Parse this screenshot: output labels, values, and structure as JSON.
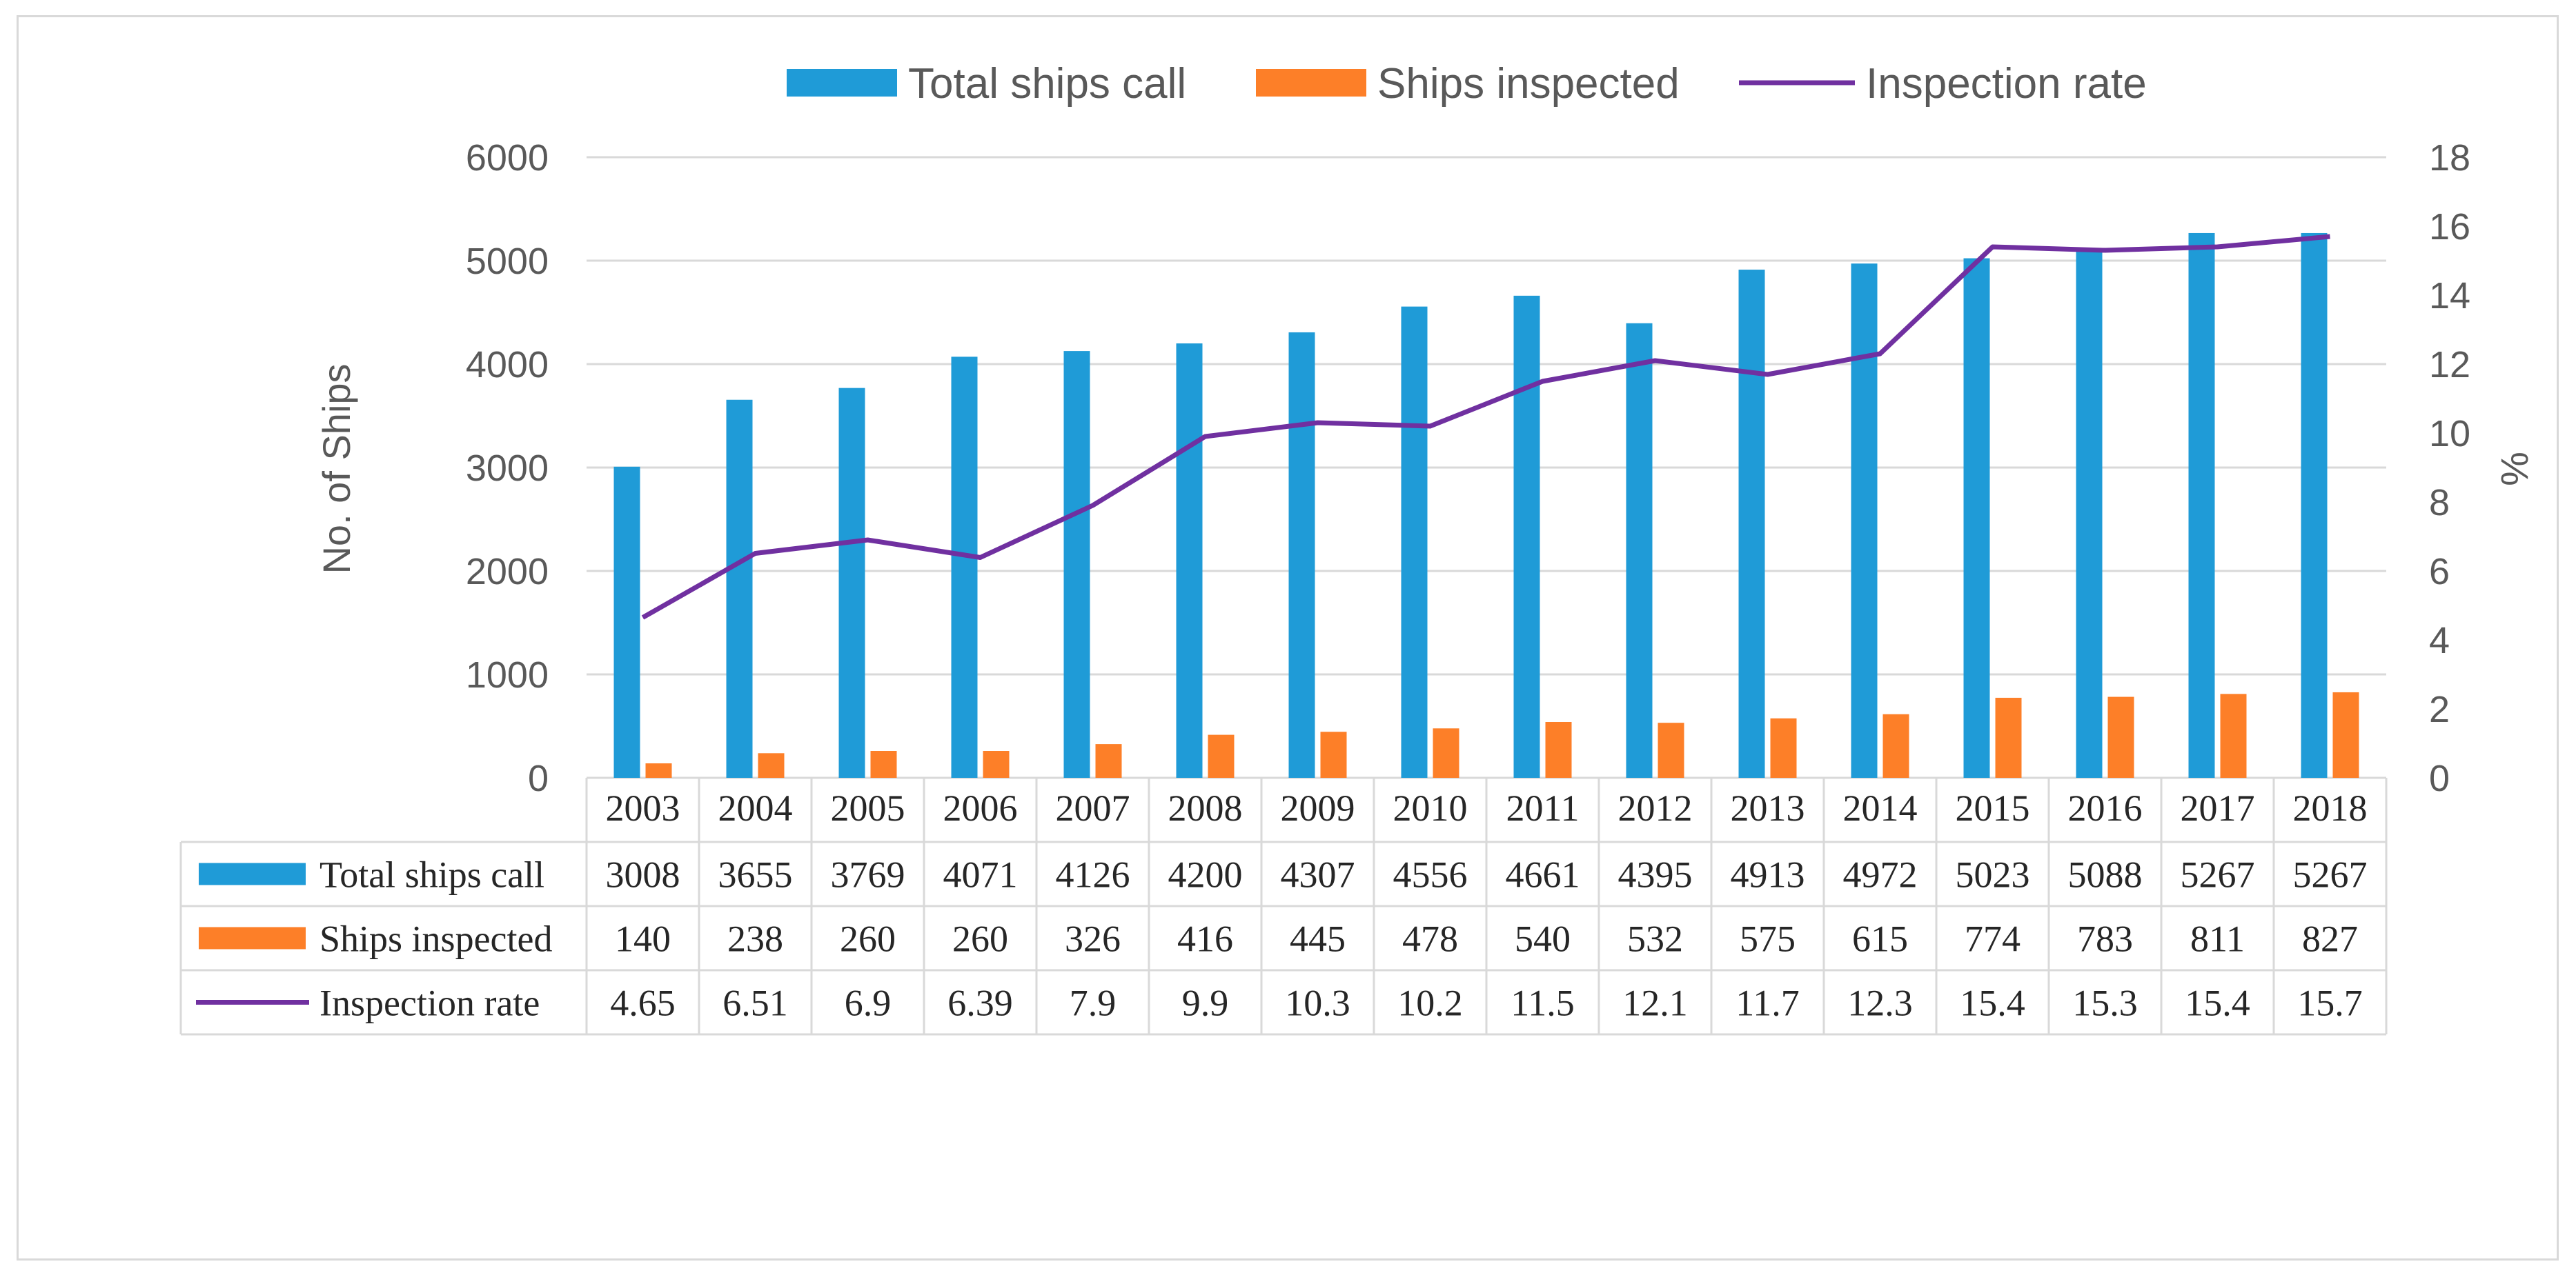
{
  "chart_data": {
    "type": "bar",
    "categories": [
      "2003",
      "2004",
      "2005",
      "2006",
      "2007",
      "2008",
      "2009",
      "2010",
      "2011",
      "2012",
      "2013",
      "2014",
      "2015",
      "2016",
      "2017",
      "2018"
    ],
    "series": [
      {
        "name": "Total ships call",
        "kind": "bar",
        "axis": "left",
        "color": "#1f9bd7",
        "values": [
          3008,
          3655,
          3769,
          4071,
          4126,
          4200,
          4307,
          4556,
          4661,
          4395,
          4913,
          4972,
          5023,
          5088,
          5267,
          5267
        ]
      },
      {
        "name": "Ships inspected",
        "kind": "bar",
        "axis": "left",
        "color": "#fd7f28",
        "values": [
          140,
          238,
          260,
          260,
          326,
          416,
          445,
          478,
          540,
          532,
          575,
          615,
          774,
          783,
          811,
          827
        ]
      },
      {
        "name": "Inspection rate",
        "kind": "line",
        "axis": "right",
        "color": "#7030a0",
        "values": [
          4.65,
          6.51,
          6.9,
          6.39,
          7.9,
          9.9,
          10.3,
          10.2,
          11.5,
          12.1,
          11.7,
          12.3,
          15.4,
          15.3,
          15.4,
          15.7
        ]
      }
    ],
    "ylabel": "No. of Ships",
    "y2label": "%",
    "ylim": [
      0,
      6000
    ],
    "yticks": [
      "0",
      "1000",
      "2000",
      "3000",
      "4000",
      "5000",
      "6000"
    ],
    "y2lim": [
      0,
      18
    ],
    "y2ticks": [
      "0",
      "2",
      "4",
      "6",
      "8",
      "10",
      "12",
      "14",
      "16",
      "18"
    ],
    "grid": true,
    "legend": "top-center",
    "data_table": true
  }
}
